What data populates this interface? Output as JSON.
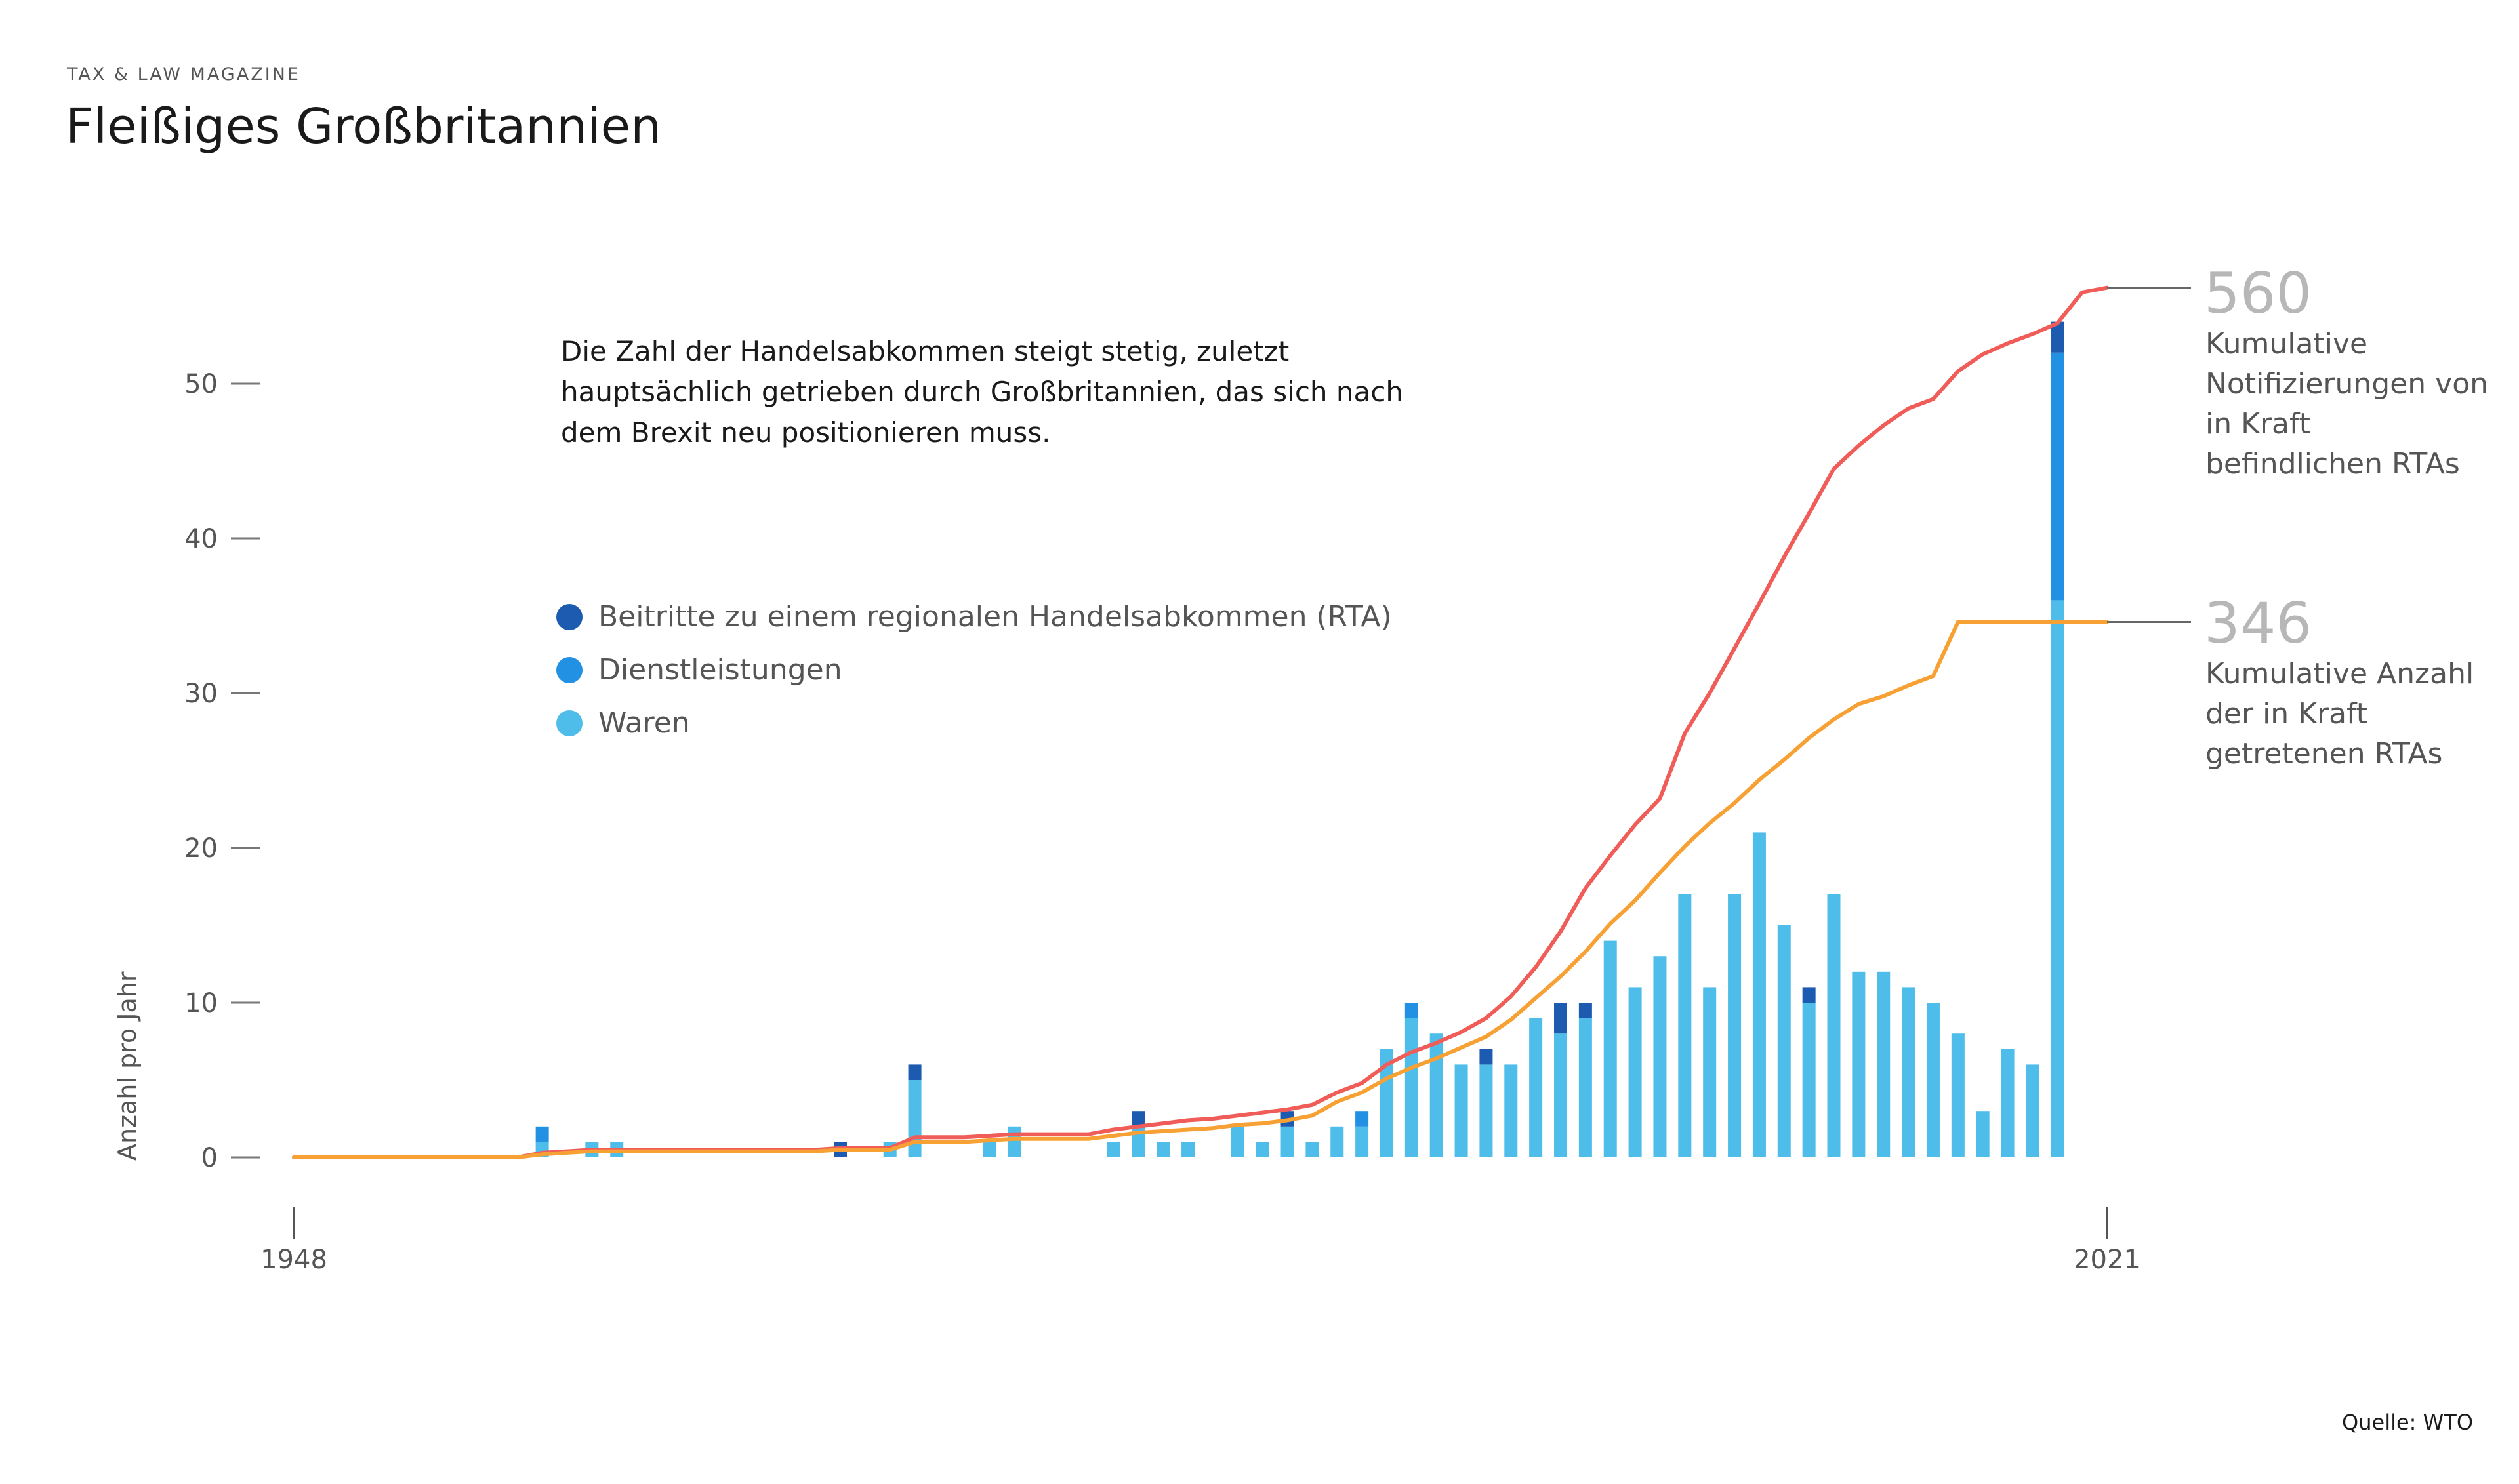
{
  "header": {
    "kicker": "TAX & LAW MAGAZINE",
    "title": "Fleißiges Großbritannien"
  },
  "intro_text": "Die Zahl der Handelsabkommen steigt stetig, zuletzt hauptsächlich getrieben durch Großbritannien, das sich nach dem Brexit neu positionieren muss.",
  "legend": [
    {
      "label": "Beitritte zu einem regionalen Handelsabkommen (RTA)",
      "color": "#1c5bb0"
    },
    {
      "label": "Dienstleistungen",
      "color": "#2290e3"
    },
    {
      "label": "Waren",
      "color": "#4fbde9"
    }
  ],
  "annotations": {
    "red_value": "560",
    "red_label": "Kumulative Notifizierungen von in Kraft befindlichen RTAs",
    "orange_value": "346",
    "orange_label": "Kumulative Anzahl der in Kraft getretenen RTAs"
  },
  "source": "Quelle: WTO",
  "colors": {
    "accession": "#1c5bb0",
    "services": "#2290e3",
    "goods": "#4fbde9",
    "notifications_line": "#f05c57",
    "rtas_line": "#f7a033"
  },
  "chart_data": {
    "type": "bar",
    "ylabel": "Anzahl pro Jahr",
    "ylim": [
      0,
      60
    ],
    "yticks": [
      0,
      10,
      20,
      30,
      40,
      50
    ],
    "xticks": [
      1948,
      2021
    ],
    "x": [
      1948,
      1949,
      1950,
      1951,
      1952,
      1953,
      1954,
      1955,
      1956,
      1957,
      1958,
      1959,
      1960,
      1961,
      1962,
      1963,
      1964,
      1965,
      1966,
      1967,
      1968,
      1969,
      1970,
      1971,
      1972,
      1973,
      1974,
      1975,
      1976,
      1977,
      1978,
      1979,
      1980,
      1981,
      1982,
      1983,
      1984,
      1985,
      1986,
      1987,
      1988,
      1989,
      1990,
      1991,
      1992,
      1993,
      1994,
      1995,
      1996,
      1997,
      1998,
      1999,
      2000,
      2001,
      2002,
      2003,
      2004,
      2005,
      2006,
      2007,
      2008,
      2009,
      2010,
      2011,
      2012,
      2013,
      2014,
      2015,
      2016,
      2017,
      2018,
      2019,
      2020,
      2021
    ],
    "series": [
      {
        "name": "Waren",
        "values": [
          0,
          0,
          0,
          0,
          0,
          0,
          0,
          0,
          0,
          0,
          1,
          0,
          1,
          1,
          0,
          0,
          0,
          0,
          0,
          0,
          0,
          0,
          0,
          0,
          1,
          5,
          0,
          0,
          1,
          2,
          0,
          0,
          0,
          1,
          2,
          1,
          1,
          0,
          2,
          1,
          2,
          1,
          2,
          2,
          7,
          9,
          8,
          6,
          6,
          6,
          9,
          8,
          9,
          14,
          11,
          13,
          17,
          11,
          17,
          21,
          15,
          10,
          17,
          12,
          12,
          11,
          10,
          8,
          3,
          7,
          6,
          36,
          0,
          0
        ]
      },
      {
        "name": "Dienstleistungen",
        "values": [
          0,
          0,
          0,
          0,
          0,
          0,
          0,
          0,
          0,
          0,
          1,
          0,
          0,
          0,
          0,
          0,
          0,
          0,
          0,
          0,
          0,
          0,
          0,
          0,
          0,
          0,
          0,
          0,
          0,
          0,
          0,
          0,
          0,
          0,
          0,
          0,
          0,
          0,
          0,
          0,
          0,
          0,
          0,
          1,
          0,
          1,
          0,
          0,
          0,
          0,
          0,
          0,
          0,
          0,
          0,
          0,
          0,
          0,
          0,
          0,
          0,
          0,
          0,
          0,
          0,
          0,
          0,
          0,
          0,
          0,
          0,
          16,
          0,
          0
        ]
      },
      {
        "name": "Beitritte zu einem regionalen Handelsabkommen (RTA)",
        "values": [
          0,
          0,
          0,
          0,
          0,
          0,
          0,
          0,
          0,
          0,
          0,
          0,
          0,
          0,
          0,
          0,
          0,
          0,
          0,
          0,
          0,
          0,
          1,
          0,
          0,
          1,
          0,
          0,
          0,
          0,
          0,
          0,
          0,
          0,
          1,
          0,
          0,
          0,
          0,
          0,
          1,
          0,
          0,
          0,
          0,
          0,
          0,
          0,
          1,
          0,
          0,
          2,
          1,
          0,
          0,
          0,
          0,
          0,
          0,
          0,
          0,
          1,
          0,
          0,
          0,
          0,
          0,
          0,
          0,
          0,
          0,
          2,
          0,
          0
        ]
      }
    ],
    "lines": [
      {
        "name": "Kumulative Notifizierungen von in Kraft befindlichen RTAs",
        "end_value": 560,
        "values": [
          0,
          0,
          0,
          0,
          0,
          0,
          0,
          0,
          0,
          0,
          0.3,
          0.4,
          0.5,
          0.5,
          0.5,
          0.5,
          0.5,
          0.5,
          0.5,
          0.5,
          0.5,
          0.5,
          0.6,
          0.6,
          0.6,
          1.3,
          1.3,
          1.3,
          1.4,
          1.5,
          1.5,
          1.5,
          1.5,
          1.8,
          2.0,
          2.2,
          2.4,
          2.5,
          2.7,
          2.9,
          3.1,
          3.4,
          4.2,
          4.8,
          6.0,
          6.8,
          7.4,
          8.1,
          9.0,
          10.4,
          12.3,
          14.6,
          17.4,
          19.5,
          21.5,
          23.2,
          27.4,
          30.0,
          32.9,
          35.8,
          38.8,
          41.6,
          44.5,
          46.0,
          47.3,
          48.4,
          49.0,
          50.8,
          51.9,
          52.6,
          53.2,
          53.9,
          55.9,
          56.2
        ]
      },
      {
        "name": "Kumulative Anzahl der in Kraft getretenen RTAs",
        "end_value": 346,
        "values": [
          0,
          0,
          0,
          0,
          0,
          0,
          0,
          0,
          0,
          0,
          0.2,
          0.3,
          0.4,
          0.4,
          0.4,
          0.4,
          0.4,
          0.4,
          0.4,
          0.4,
          0.4,
          0.4,
          0.5,
          0.5,
          0.5,
          1.0,
          1.0,
          1.0,
          1.1,
          1.2,
          1.2,
          1.2,
          1.2,
          1.4,
          1.6,
          1.7,
          1.8,
          1.9,
          2.1,
          2.2,
          2.4,
          2.7,
          3.6,
          4.2,
          5.1,
          5.8,
          6.4,
          7.1,
          7.8,
          8.9,
          10.3,
          11.7,
          13.3,
          15.1,
          16.6,
          18.4,
          20.1,
          21.6,
          22.9,
          24.4,
          25.7,
          27.1,
          28.3,
          29.3,
          29.8,
          30.5,
          31.1,
          34.6,
          34.6,
          34.6,
          34.6,
          34.6,
          34.6,
          34.6
        ]
      }
    ]
  }
}
